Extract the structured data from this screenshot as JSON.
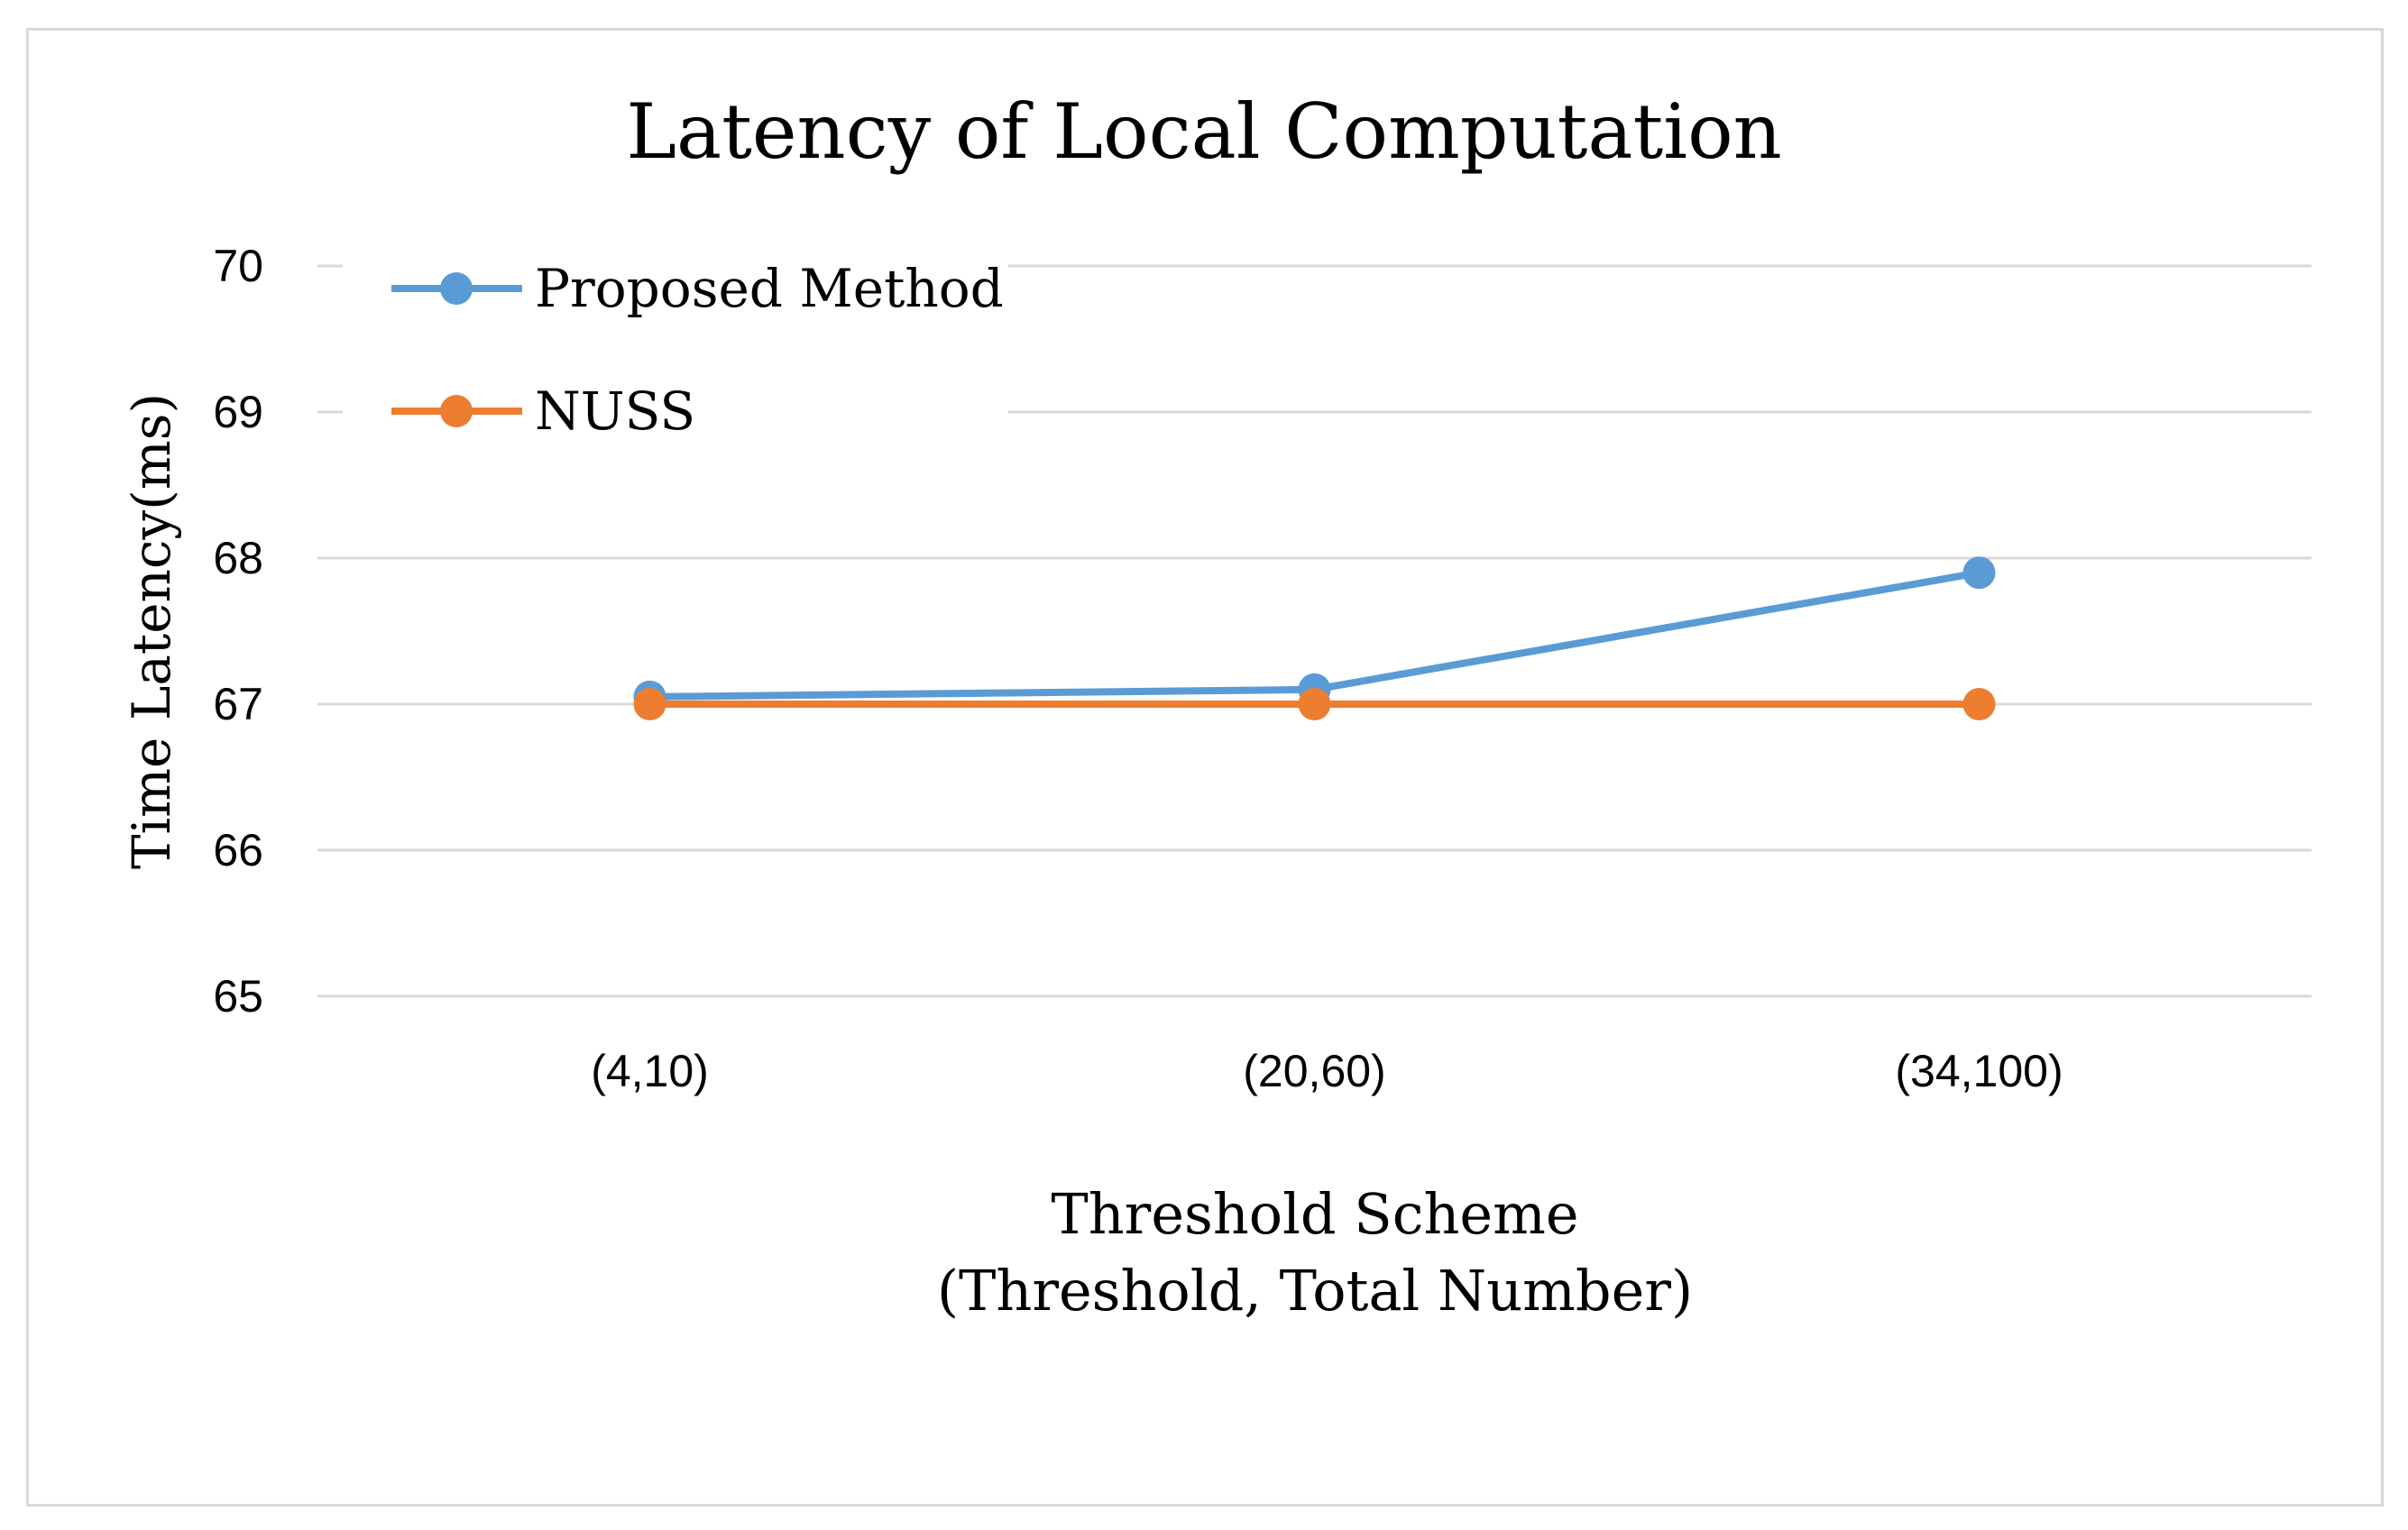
{
  "chart_data": {
    "type": "line",
    "title": "Latency of Local Computation",
    "xlabel": "Threshold Scheme",
    "xlabel_line2": "(Threshold, Total Number)",
    "ylabel": "Time Latency(ms)",
    "categories": [
      "(4,10)",
      "(20,60)",
      "(34,100)"
    ],
    "ylim": [
      65,
      70
    ],
    "yticks": [
      65,
      66,
      67,
      68,
      69,
      70
    ],
    "grid": true,
    "legend_position": "top-left",
    "series": [
      {
        "name": "Proposed Method",
        "color": "#5b9bd5",
        "values": [
          67.05,
          67.1,
          67.9
        ]
      },
      {
        "name": "NUSS",
        "color": "#ed7d31",
        "values": [
          67.0,
          67.0,
          67.0
        ]
      }
    ]
  }
}
